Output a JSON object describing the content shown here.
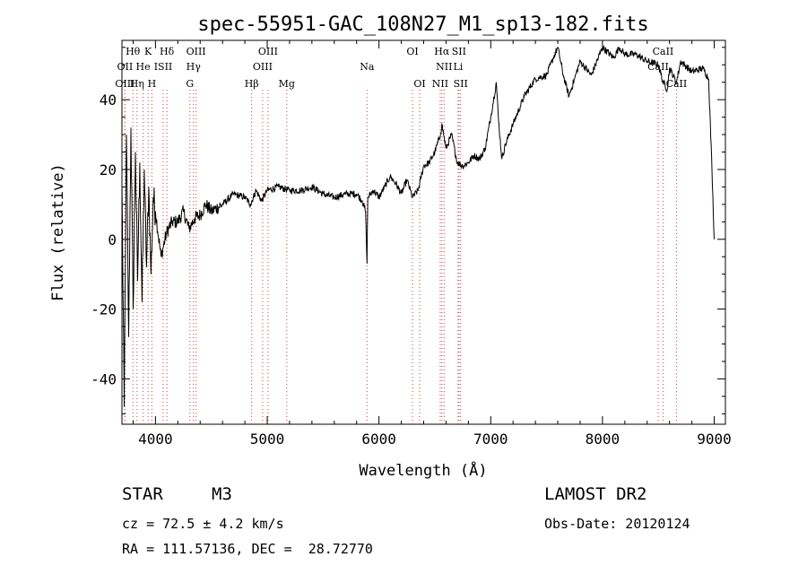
{
  "chart_data": {
    "type": "line",
    "title": "spec-55951-GAC_108N27_M1_sp13-182.fits",
    "xlabel": "Wavelength (Å)",
    "ylabel": "Flux (relative)",
    "xlim": [
      3700,
      9100
    ],
    "ylim": [
      -53,
      57
    ],
    "xticks": [
      4000,
      5000,
      6000,
      7000,
      8000,
      9000
    ],
    "yticks": [
      -40,
      -20,
      0,
      20,
      40
    ],
    "grid": false,
    "series": [
      {
        "color": "#000000",
        "x": [
          3700,
          3720,
          3740,
          3760,
          3780,
          3800,
          3820,
          3840,
          3860,
          3880,
          3900,
          3920,
          3940,
          3960,
          3980,
          4000,
          4050,
          4100,
          4150,
          4200,
          4250,
          4300,
          4350,
          4400,
          4450,
          4500,
          4600,
          4700,
          4800,
          4850,
          4900,
          4950,
          5000,
          5100,
          5200,
          5300,
          5400,
          5500,
          5600,
          5700,
          5800,
          5850,
          5880,
          5893,
          5900,
          5950,
          6000,
          6050,
          6100,
          6150,
          6200,
          6250,
          6300,
          6350,
          6400,
          6450,
          6500,
          6550,
          6563,
          6600,
          6650,
          6700,
          6750,
          6800,
          6850,
          6900,
          6950,
          7000,
          7050,
          7070,
          7100,
          7130,
          7200,
          7300,
          7400,
          7500,
          7560,
          7600,
          7650,
          7700,
          7750,
          7800,
          7900,
          8000,
          8100,
          8150,
          8200,
          8300,
          8400,
          8500,
          8542,
          8580,
          8600,
          8662,
          8700,
          8800,
          8900,
          8950,
          8980,
          9000
        ],
        "y": [
          16,
          -48,
          30,
          -28,
          32,
          -20,
          25,
          -12,
          22,
          -18,
          20,
          -8,
          15,
          -10,
          12,
          8,
          -5,
          2,
          5,
          5,
          8,
          3,
          6,
          7,
          10,
          8,
          10,
          13,
          12,
          10,
          14,
          11,
          14,
          15,
          14,
          14,
          15,
          13,
          12,
          13,
          13,
          11,
          8,
          -7,
          12,
          14,
          12,
          15,
          18,
          16,
          13,
          17,
          12,
          14,
          21,
          22,
          25,
          30,
          33,
          26,
          30,
          22,
          21,
          22,
          24,
          23,
          26,
          35,
          45,
          34,
          23,
          27,
          33,
          41,
          46,
          47,
          52,
          55,
          47,
          41,
          46,
          51,
          47,
          55,
          52,
          55,
          53,
          53,
          51,
          50,
          45,
          43,
          49,
          45,
          51,
          48,
          49,
          46,
          20,
          0
        ]
      }
    ],
    "spectral_lines": [
      {
        "label": "Hθ",
        "wavelength": 3798,
        "row": 1
      },
      {
        "label": "OII",
        "wavelength": 3727,
        "row": 2
      },
      {
        "label": "OIII",
        "wavelength": 3727,
        "row": 3
      },
      {
        "label": "K",
        "wavelength": 3934,
        "row": 1
      },
      {
        "label": "He",
        "wavelength": 3889,
        "row": 2
      },
      {
        "label": "Hη",
        "wavelength": 3835,
        "row": 3
      },
      {
        "label": "Hδ",
        "wavelength": 4102,
        "row": 1
      },
      {
        "label": "ISII",
        "wavelength": 4069,
        "row": 2
      },
      {
        "label": "H",
        "wavelength": 3968,
        "row": 3
      },
      {
        "label": "OIII",
        "wavelength": 4363,
        "row": 1
      },
      {
        "label": "Hγ",
        "wavelength": 4340,
        "row": 2
      },
      {
        "label": "G",
        "wavelength": 4308,
        "row": 3
      },
      {
        "label": "OIII",
        "wavelength": 5007,
        "row": 1
      },
      {
        "label": "OIII",
        "wavelength": 4959,
        "row": 2
      },
      {
        "label": "Hβ",
        "wavelength": 4861,
        "row": 3
      },
      {
        "label": "Mg",
        "wavelength": 5175,
        "row": 3
      },
      {
        "label": "Na",
        "wavelength": 5893,
        "row": 2
      },
      {
        "label": "OI",
        "wavelength": 6300,
        "row": 1
      },
      {
        "label": "OI",
        "wavelength": 6364,
        "row": 3
      },
      {
        "label": "Hα",
        "wavelength": 6563,
        "row": 1
      },
      {
        "label": "SII",
        "wavelength": 6716,
        "row": 1
      },
      {
        "label": "NII",
        "wavelength": 6583,
        "row": 2
      },
      {
        "label": "Li",
        "wavelength": 6708,
        "row": 2
      },
      {
        "label": "NII",
        "wavelength": 6548,
        "row": 3
      },
      {
        "label": "SII",
        "wavelength": 6731,
        "row": 3
      },
      {
        "label": "CaII",
        "wavelength": 8542,
        "row": 1
      },
      {
        "label": "CaII",
        "wavelength": 8498,
        "row": 2
      },
      {
        "label": "CaII",
        "wavelength": 8662,
        "row": 3
      }
    ]
  },
  "info": {
    "object_class": "STAR",
    "subclass": "M3",
    "survey": "LAMOST DR2",
    "cz": "cz = 72.5 ± 4.2 km/s",
    "obs_date": "Obs-Date: 20120124",
    "coords": "RA = 111.57136, DEC =  28.72770"
  }
}
